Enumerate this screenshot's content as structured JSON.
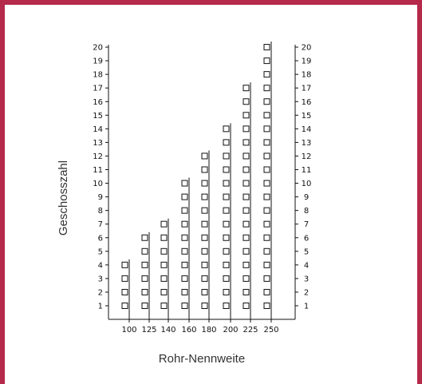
{
  "chart_data": {
    "type": "bar",
    "title": "",
    "xlabel": "Rohr-Nennweite",
    "ylabel": "Geschosszahl",
    "categories": [
      "100",
      "125",
      "140",
      "160",
      "180",
      "200",
      "225",
      "250"
    ],
    "values": [
      4,
      6,
      7,
      10,
      12,
      14,
      17,
      20
    ],
    "ylim": [
      0,
      20
    ],
    "y_ticks": [
      "1",
      "2",
      "3",
      "4",
      "5",
      "6",
      "7",
      "8",
      "9",
      "10",
      "11",
      "12",
      "13",
      "14",
      "15",
      "16",
      "17",
      "18",
      "19",
      "20"
    ],
    "right_axis": true,
    "grid": false,
    "legend": "none",
    "colors": {
      "frame": "#b5294a",
      "ink": "#111111"
    }
  }
}
